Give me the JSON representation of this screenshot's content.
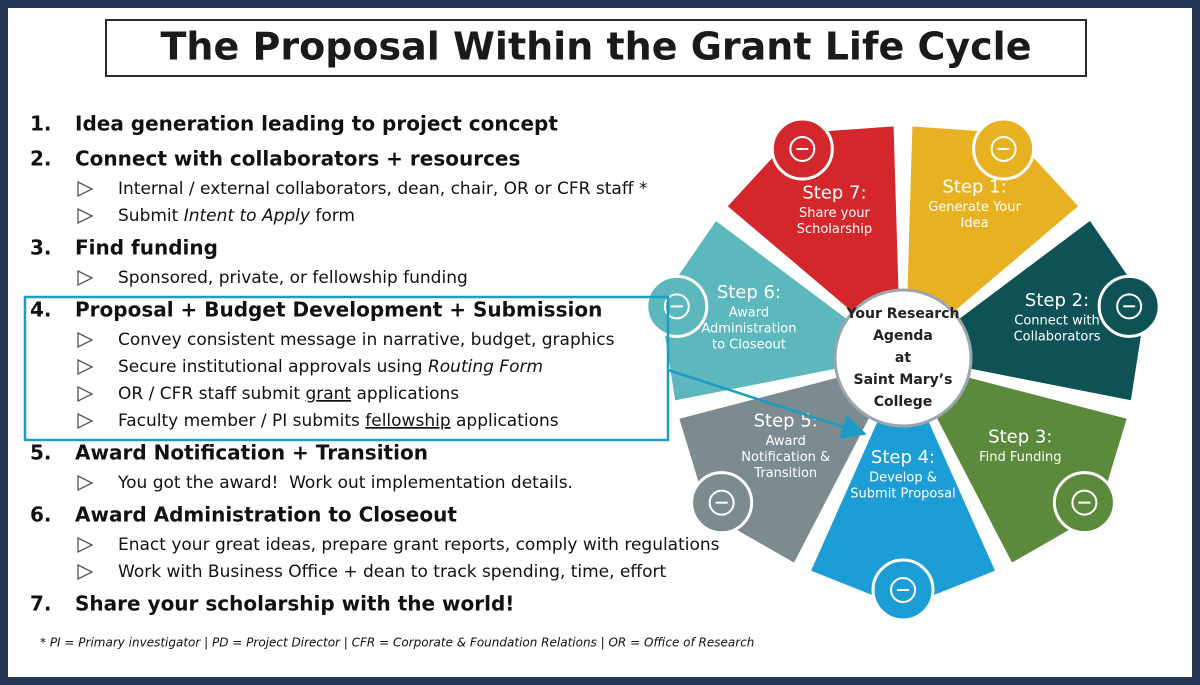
{
  "title": "The Proposal Within the Grant Life Cycle",
  "sections": [
    {
      "number": "1.",
      "heading": "Idea generation leading to project concept"
    },
    {
      "number": "2.",
      "heading": "Connect with collaborators + resources",
      "items": [
        [
          {
            "text": "Internal / external collaborators, dean, chair, OR or CFR staff *"
          }
        ],
        [
          {
            "text": "Submit "
          },
          {
            "text": "Intent to Apply",
            "style": "italic"
          },
          {
            "text": " form"
          }
        ]
      ]
    },
    {
      "number": "3.",
      "heading": "Find funding",
      "items": [
        [
          {
            "text": "Sponsored, private, or fellowship funding"
          }
        ]
      ]
    },
    {
      "number": "4.",
      "heading": "Proposal + Budget Development + Submission",
      "items": [
        [
          {
            "text": "Convey consistent message in narrative, budget, graphics"
          }
        ],
        [
          {
            "text": "Secure institutional approvals using "
          },
          {
            "text": "Routing Form",
            "style": "italic"
          }
        ],
        [
          {
            "text": "OR / CFR staff submit "
          },
          {
            "text": "grant",
            "style": "underline"
          },
          {
            "text": " applications"
          }
        ],
        [
          {
            "text": "Faculty member / PI submits "
          },
          {
            "text": "fellowship",
            "style": "underline"
          },
          {
            "text": " applications"
          }
        ]
      ]
    },
    {
      "number": "5.",
      "heading": "Award Notification + Transition",
      "items": [
        [
          {
            "text": "You got the award!  Work out implementation details."
          }
        ]
      ]
    },
    {
      "number": "6.",
      "heading": "Award Administration to Closeout",
      "items": [
        [
          {
            "text": "Enact your great ideas, prepare grant reports, comply with regulations"
          }
        ],
        [
          {
            "text": "Work with Business Office + dean to track spending, time, effort"
          }
        ]
      ]
    },
    {
      "number": "7.",
      "heading": "Share your scholarship with the world!"
    }
  ],
  "footnote": "* PI = Primary investigator | PD = Project Director | CFR = Corporate & Foundation Relations | OR = Office of Research",
  "wheel": {
    "center": [
      "Your Research",
      "Agenda",
      "at",
      "Saint Mary’s",
      "College"
    ],
    "steps": [
      {
        "step": "Step 1:",
        "lines": [
          "Generate Your",
          "Idea"
        ],
        "color": "#e8b122"
      },
      {
        "step": "Step 2:",
        "lines": [
          "Connect with",
          "Collaborators"
        ],
        "color": "#0f5256"
      },
      {
        "step": "Step 3:",
        "lines": [
          "Find Funding"
        ],
        "color": "#5b8a3c"
      },
      {
        "step": "Step 4:",
        "lines": [
          "Develop &",
          "Submit Proposal"
        ],
        "color": "#1d9dd5"
      },
      {
        "step": "Step 5:",
        "lines": [
          "Award",
          "Notification &",
          "Transition"
        ],
        "color": "#7c8b90"
      },
      {
        "step": "Step 6:",
        "lines": [
          "Award",
          "Administration",
          "to Closeout"
        ],
        "color": "#5db8be"
      },
      {
        "step": "Step 7:",
        "lines": [
          "Share your",
          "Scholarship"
        ],
        "color": "#d4272b"
      }
    ]
  }
}
